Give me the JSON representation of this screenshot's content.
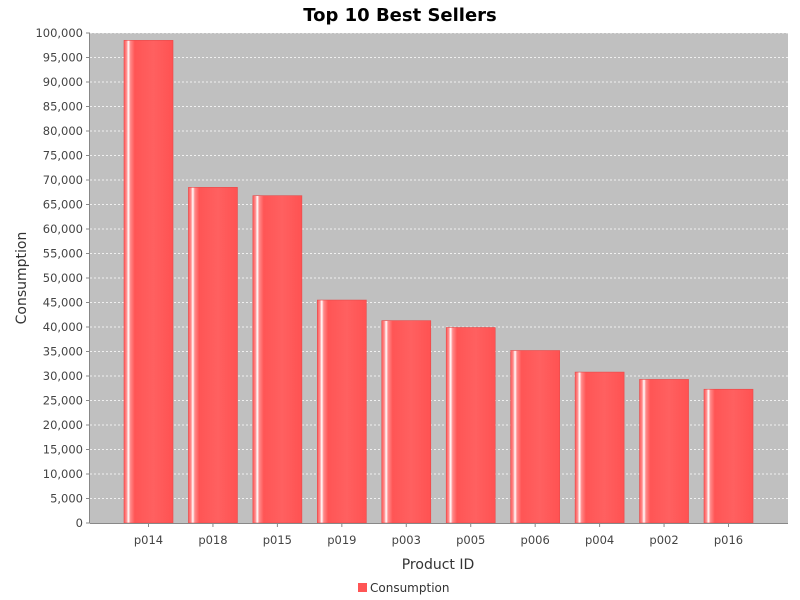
{
  "chart_data": {
    "type": "bar",
    "title": "Top 10 Best Sellers",
    "xlabel": "Product ID",
    "ylabel": "Consumption",
    "categories": [
      "p014",
      "p018",
      "p015",
      "p019",
      "p003",
      "p005",
      "p006",
      "p004",
      "p002",
      "p016"
    ],
    "series": [
      {
        "name": "Consumption",
        "values": [
          98500,
          68500,
          66800,
          45500,
          41300,
          39900,
          35200,
          30800,
          29300,
          27300
        ]
      }
    ],
    "ylim": [
      0,
      100000
    ],
    "yticks": [
      0,
      5000,
      10000,
      15000,
      20000,
      25000,
      30000,
      35000,
      40000,
      45000,
      50000,
      55000,
      60000,
      65000,
      70000,
      75000,
      80000,
      85000,
      90000,
      95000,
      100000
    ],
    "ytick_labels": [
      "0",
      "5,000",
      "10,000",
      "15,000",
      "20,000",
      "25,000",
      "30,000",
      "35,000",
      "40,000",
      "45,000",
      "50,000",
      "55,000",
      "60,000",
      "65,000",
      "70,000",
      "75,000",
      "80,000",
      "85,000",
      "90,000",
      "95,000",
      "100,000"
    ],
    "grid": true,
    "legend": "bottom-center",
    "colors": {
      "bar": "#ff5555",
      "bar_dark": "#e84848",
      "highlight": "#ffffff",
      "plot_bg": "#c0c0c0",
      "grid": "#ffffff"
    }
  }
}
